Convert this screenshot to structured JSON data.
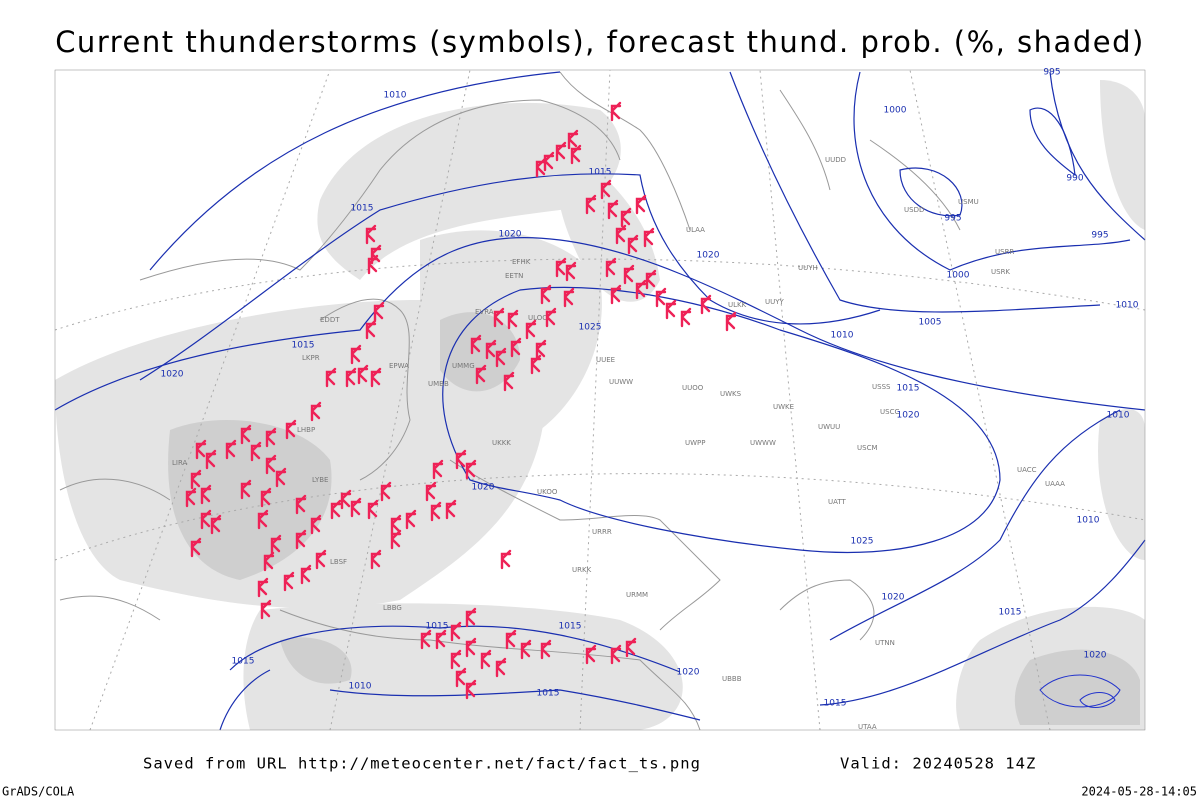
{
  "title": "Current thunderstorms (symbols), forecast thund. prob. (%, shaded)",
  "footer": {
    "source": "Saved from URL http://meteocenter.net/fact/fact_ts.png",
    "valid": "Valid: 20240528 14Z",
    "credit": "GrADS/COLA",
    "timestamp": "2024-05-28-14:05"
  },
  "isobar_labels": [
    1010,
    1015,
    1015,
    1020,
    1020,
    1025,
    1015,
    1020,
    1000,
    990,
    995,
    995,
    1000,
    1005,
    1010,
    1010,
    1015,
    1020,
    1020,
    1025,
    1020,
    1010,
    1010,
    1015,
    1015,
    1015,
    1015,
    1010,
    1015,
    1020,
    1015,
    1020,
    995
  ],
  "stations": [
    "ULOO",
    "UUEE",
    "UUWW",
    "UUOO",
    "UWKS",
    "UWKE",
    "UWUU",
    "UWWW",
    "UWPP",
    "UMMG",
    "UMBB",
    "UKKK",
    "UKOO",
    "URRR",
    "URKK",
    "URMM",
    "ULAA",
    "UUYY",
    "ULKK",
    "UUYH",
    "USSS",
    "USCC",
    "USCM",
    "UATT",
    "UACC",
    "UAAA",
    "UTAA",
    "UTNN",
    "UBBB",
    "LBSF",
    "LBBG",
    "LYBE",
    "LHBP",
    "LIRA",
    "EPWA",
    "EDDT",
    "LKPR",
    "EVRA",
    "EETN",
    "EFHK",
    "UUDD",
    "USDD",
    "USMU",
    "USRR",
    "USRK"
  ]
}
